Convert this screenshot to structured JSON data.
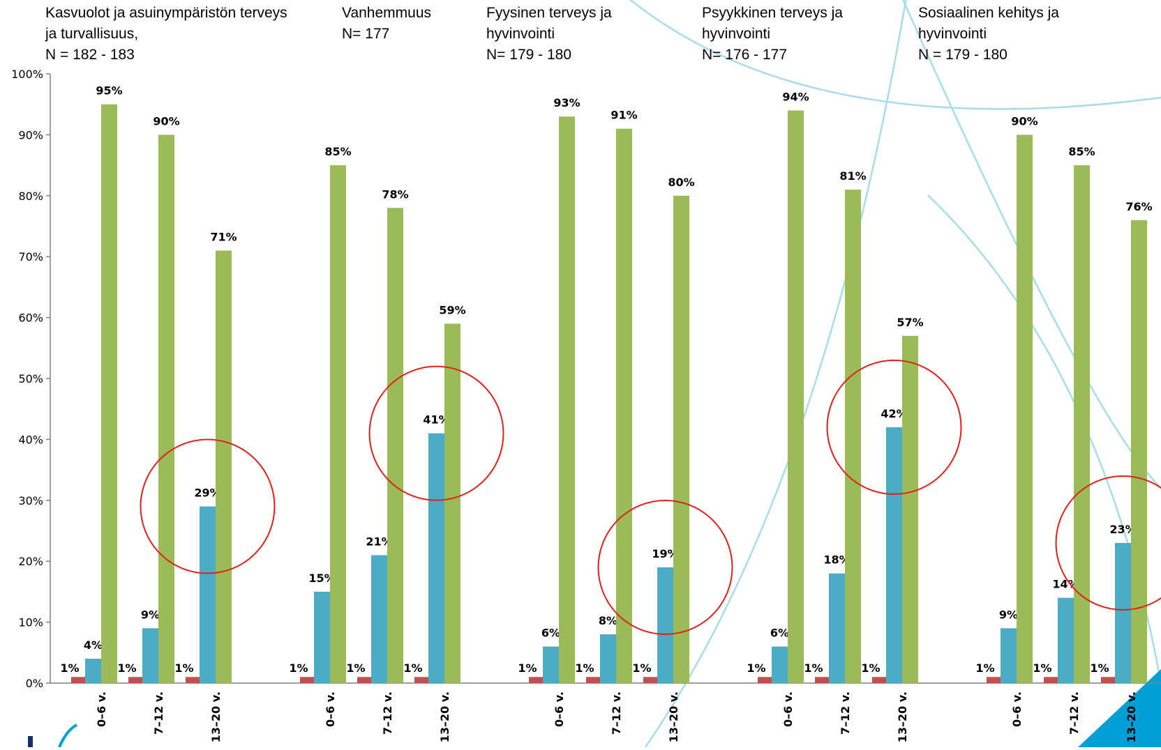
{
  "chart_data": {
    "type": "bar",
    "ylim": [
      0,
      100
    ],
    "y_ticks": [
      "0%",
      "10%",
      "20%",
      "30%",
      "40%",
      "50%",
      "60%",
      "70%",
      "80%",
      "90%",
      "100%"
    ],
    "grid": false,
    "series_colors": [
      "#c0504d",
      "#4bacc6",
      "#9bbb59"
    ],
    "highlight_color": "#e0201b",
    "decor_color": "#a8dcec",
    "groups": [
      {
        "title_lines": [
          "Kasvuolot ja asuinympäristön terveys",
          "ja turvallisuus,",
          "N = 182 - 183"
        ],
        "categories": [
          "0–6 v.",
          "7–12 v.",
          "13–20 v."
        ],
        "series": [
          {
            "values": [
              1,
              1,
              1
            ],
            "labels": [
              "1%",
              "1%",
              "1%"
            ]
          },
          {
            "values": [
              4,
              9,
              29
            ],
            "labels": [
              "4%",
              "9%",
              "29%"
            ]
          },
          {
            "values": [
              95,
              90,
              71
            ],
            "labels": [
              "95%",
              "90%",
              "71%"
            ]
          }
        ],
        "highlighted_category": "13–20 v."
      },
      {
        "title_lines": [
          "Vanhemmuus",
          "N= 177"
        ],
        "categories": [
          "0–6 v.",
          "7–12 v.",
          "13–20 v."
        ],
        "series": [
          {
            "values": [
              1,
              1,
              1
            ],
            "labels": [
              "1%",
              "1%",
              "1%"
            ]
          },
          {
            "values": [
              15,
              21,
              41
            ],
            "labels": [
              "15%",
              "21%",
              "41%"
            ]
          },
          {
            "values": [
              85,
              78,
              59
            ],
            "labels": [
              "85%",
              "78%",
              "59%"
            ]
          }
        ],
        "highlighted_category": "13–20 v."
      },
      {
        "title_lines": [
          "Fyysinen terveys ja",
          "hyvinvointi",
          "N= 179 - 180"
        ],
        "categories": [
          "0–6 v.",
          "7–12 v.",
          "13–20 v."
        ],
        "series": [
          {
            "values": [
              1,
              1,
              1
            ],
            "labels": [
              "1%",
              "1%",
              "1%"
            ]
          },
          {
            "values": [
              6,
              8,
              19
            ],
            "labels": [
              "6%",
              "8%",
              "19%"
            ]
          },
          {
            "values": [
              93,
              91,
              80
            ],
            "labels": [
              "93%",
              "91%",
              "80%"
            ]
          }
        ],
        "highlighted_category": "13–20 v."
      },
      {
        "title_lines": [
          "Psyykkinen  terveys ja",
          "hyvinvointi",
          "N= 176 - 177"
        ],
        "categories": [
          "0–6 v.",
          "7–12 v.",
          "13–20 v."
        ],
        "series": [
          {
            "values": [
              1,
              1,
              1
            ],
            "labels": [
              "1%",
              "1%",
              "1%"
            ]
          },
          {
            "values": [
              6,
              18,
              42
            ],
            "labels": [
              "6%",
              "18%",
              "42%"
            ]
          },
          {
            "values": [
              94,
              81,
              57
            ],
            "labels": [
              "94%",
              "81%",
              "57%"
            ]
          }
        ],
        "highlighted_category": "13–20 v."
      },
      {
        "title_lines": [
          "Sosiaalinen kehitys ja",
          "hyvinvointi",
          "N = 179 - 180"
        ],
        "categories": [
          "0–6 v.",
          "7–12 v.",
          "13–20 v."
        ],
        "series": [
          {
            "values": [
              1,
              1,
              1
            ],
            "labels": [
              "1%",
              "1%",
              "1%"
            ]
          },
          {
            "values": [
              9,
              14,
              23
            ],
            "labels": [
              "9%",
              "14%",
              "23%"
            ]
          },
          {
            "values": [
              90,
              85,
              76
            ],
            "labels": [
              "90%",
              "85%",
              "76%"
            ]
          }
        ],
        "highlighted_category": "13–20 v."
      }
    ]
  }
}
